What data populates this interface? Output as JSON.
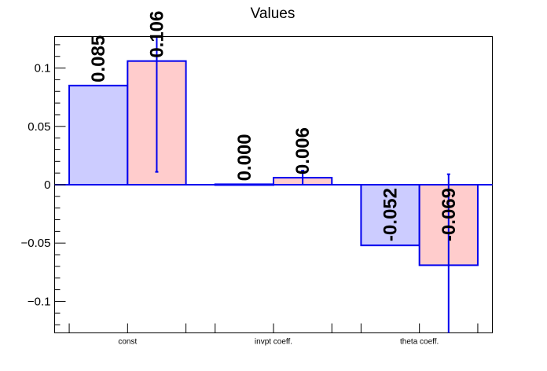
{
  "colors": {
    "axis": "#000000",
    "edge": "#0000ee",
    "series_a_fill": "#ccccff",
    "series_b_fill": "#ffcccc",
    "zero_line": "#0000ee"
  },
  "chart_data": {
    "type": "bar",
    "title": "Values",
    "xlabel": "",
    "ylabel": "",
    "categories": [
      "const",
      "invpt coeff.",
      "theta coeff."
    ],
    "ylim": [
      -0.127,
      0.127
    ],
    "yticks": [
      -0.1,
      -0.05,
      0,
      0.05,
      0.1
    ],
    "ytick_labels": [
      "−0.1",
      "−0.05",
      "0",
      "0.05",
      "0.1"
    ],
    "series": [
      {
        "values": [
          0.085,
          0.0004,
          -0.052
        ],
        "labels": [
          "0.085",
          "0.000",
          "-0.052"
        ],
        "errors": [
          0,
          0,
          0
        ]
      },
      {
        "values": [
          0.106,
          0.006,
          -0.069
        ],
        "labels": [
          "0.106",
          "0.006",
          "-0.069"
        ],
        "errors": [
          0.095,
          0.006,
          0.078
        ]
      }
    ],
    "grid": false,
    "legend": "none"
  }
}
